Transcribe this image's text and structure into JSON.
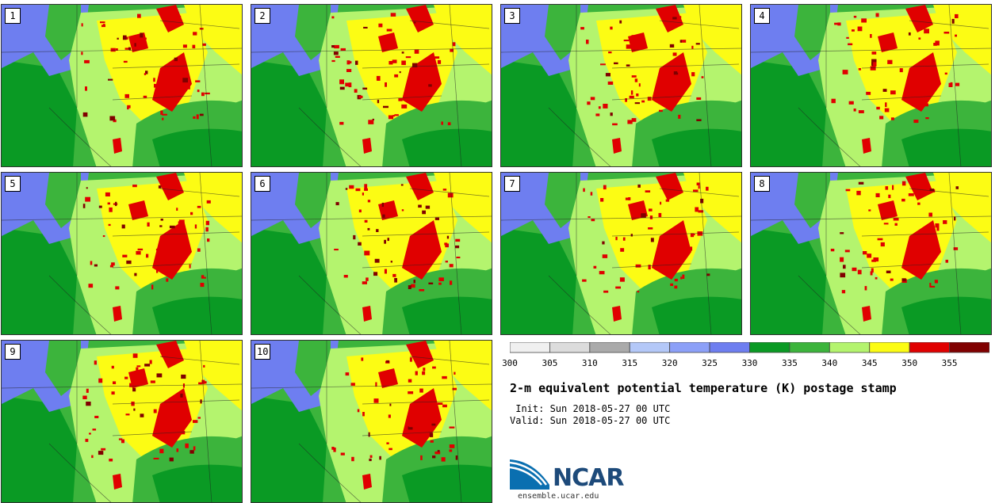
{
  "panels": [
    {
      "label": "1"
    },
    {
      "label": "2"
    },
    {
      "label": "3"
    },
    {
      "label": "4"
    },
    {
      "label": "5"
    },
    {
      "label": "6"
    },
    {
      "label": "7"
    },
    {
      "label": "8"
    },
    {
      "label": "9"
    },
    {
      "label": "10"
    }
  ],
  "colorbar": {
    "ticks": [
      "300",
      "305",
      "310",
      "315",
      "320",
      "325",
      "330",
      "335",
      "340",
      "345",
      "350",
      "355"
    ],
    "colors": [
      "#f0f0f0",
      "#dcdcdc",
      "#aaaaaa",
      "#b4c8f8",
      "#8ca0f8",
      "#6e7ef0",
      "#0a9a24",
      "#3cb43c",
      "#b4f46e",
      "#fcfc14",
      "#e00000",
      "#800000"
    ]
  },
  "title": "2-m equivalent potential temperature (K) postage stamp",
  "init": " Init: Sun 2018-05-27 00 UTC",
  "valid": "Valid: Sun 2018-05-27 00 UTC",
  "logo_text": "NCAR",
  "url": "ensemble.ucar.edu",
  "map_colors": {
    "dark_green": "#0a9a24",
    "green": "#3cb43c",
    "light_green": "#b4f46e",
    "yellow": "#fcfc14",
    "red": "#e00000",
    "dark_red": "#800000",
    "blue": "#6e7ef0"
  }
}
